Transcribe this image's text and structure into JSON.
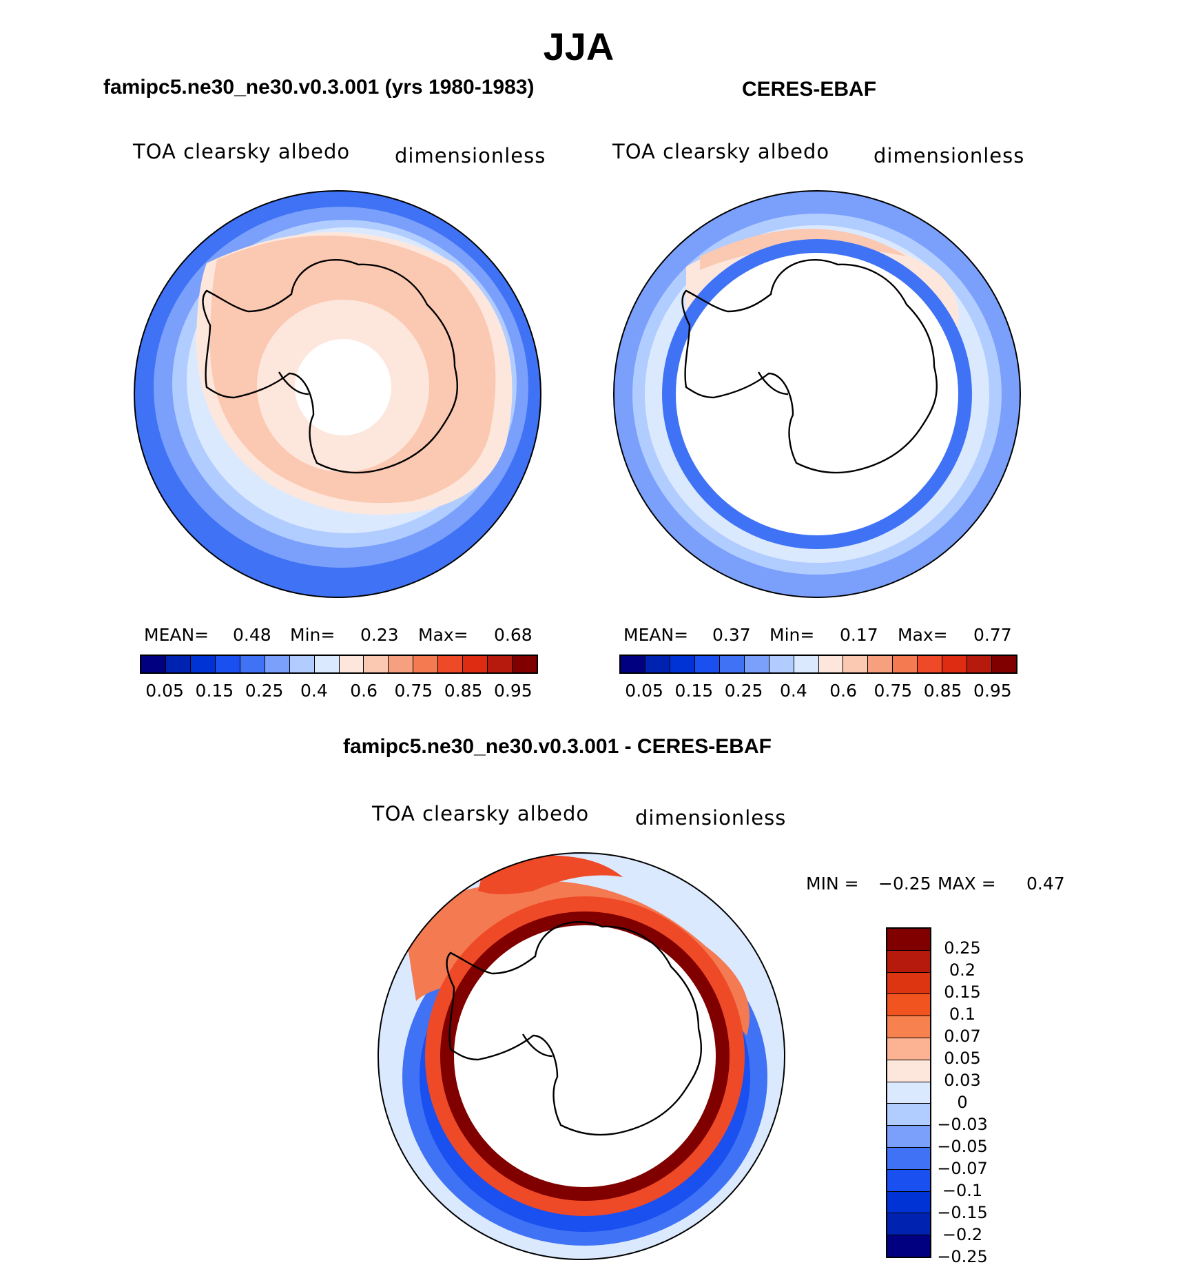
{
  "figure": {
    "season": "JJA",
    "model_title": "famipc5.ne30_ne30.v0.3.001 (yrs 1980-1983)",
    "obs_title": "CERES-EBAF",
    "diff_title": "famipc5.ne30_ne30.v0.3.001 - CERES-EBAF"
  },
  "panels": {
    "model": {
      "variable": "TOA clearsky albedo",
      "units": "dimensionless",
      "stats": {
        "mean_label": "MEAN=",
        "mean": "0.48",
        "min_label": "Min=",
        "min": "0.23",
        "max_label": "Max=",
        "max": "0.68"
      }
    },
    "obs": {
      "variable": "TOA clearsky albedo",
      "units": "dimensionless",
      "stats": {
        "mean_label": "MEAN=",
        "mean": "0.37",
        "min_label": "Min=",
        "min": "0.17",
        "max_label": "Max=",
        "max": "0.77"
      }
    },
    "diff": {
      "variable": "TOA clearsky albedo",
      "units": "dimensionless",
      "stats": {
        "min_label": "MIN =",
        "min": "−0.25",
        "max_label": "MAX =",
        "max": "0.47"
      }
    }
  },
  "colorbar_abs": {
    "colors": [
      "#000080",
      "#0022b0",
      "#0033d6",
      "#1a4ff0",
      "#3f72f5",
      "#7aa0fb",
      "#b1ccff",
      "#dbe9ff",
      "#fde7dc",
      "#fbc8b2",
      "#f7a07f",
      "#f47a52",
      "#ef4a27",
      "#dd2c11",
      "#b61a0c",
      "#800000"
    ],
    "tick_labels": [
      "0.05",
      "0.15",
      "0.25",
      "0.4",
      "0.6",
      "0.75",
      "0.85",
      "0.95"
    ]
  },
  "colorbar_diff": {
    "colors": [
      "#800000",
      "#b61a0c",
      "#dd3411",
      "#f2541f",
      "#f7824f",
      "#fbb393",
      "#fde7dc",
      "#dbe9ff",
      "#b1ccff",
      "#7aa0fb",
      "#3f72f5",
      "#1a4ff0",
      "#0033d6",
      "#0022b0",
      "#000080"
    ],
    "tick_labels": [
      "0.25",
      "0.2",
      "0.15",
      "0.1",
      "0.07",
      "0.05",
      "0.03",
      "0",
      "−0.03",
      "−0.05",
      "−0.07",
      "−0.1",
      "−0.15",
      "−0.2",
      "−0.25"
    ]
  }
}
